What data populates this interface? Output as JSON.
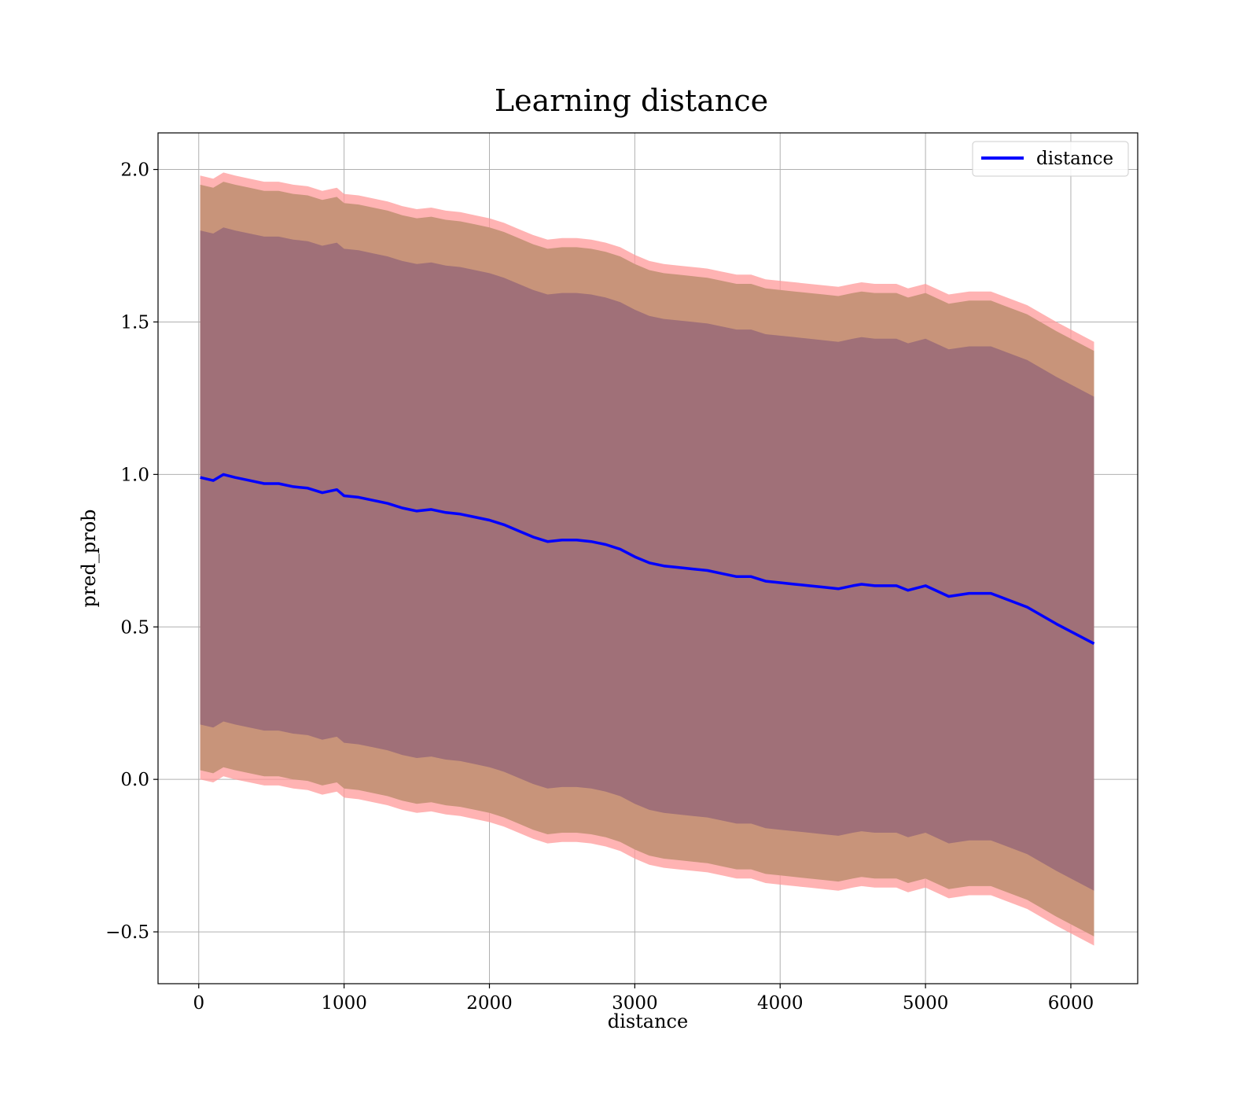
{
  "chart_data": {
    "type": "area",
    "title": "Learning distance",
    "xlabel": "distance",
    "ylabel": "pred_prob",
    "xlim": [
      -280,
      6460
    ],
    "ylim": [
      -0.67,
      2.12
    ],
    "xticks": [
      0,
      1000,
      2000,
      3000,
      4000,
      5000,
      6000
    ],
    "yticks": [
      -0.5,
      0.0,
      0.5,
      1.0,
      1.5,
      2.0
    ],
    "xtick_labels": [
      "0",
      "1000",
      "2000",
      "3000",
      "4000",
      "5000",
      "6000"
    ],
    "ytick_labels": [
      "−0.5",
      "0.0",
      "0.5",
      "1.0",
      "1.5",
      "2.0"
    ],
    "grid": true,
    "legend": {
      "position": "top-right",
      "entries": [
        "distance"
      ]
    },
    "colors": {
      "line": "#0000ff",
      "band_outer": "#ff9999",
      "band_middle": "#c8947a",
      "band_inner": "#a07078"
    },
    "series": [
      {
        "name": "distance",
        "x": [
          10,
          100,
          170,
          250,
          350,
          450,
          550,
          650,
          750,
          850,
          950,
          1000,
          1100,
          1200,
          1300,
          1400,
          1500,
          1600,
          1700,
          1800,
          1900,
          2000,
          2100,
          2200,
          2300,
          2400,
          2500,
          2600,
          2700,
          2800,
          2900,
          3000,
          3100,
          3200,
          3300,
          3400,
          3500,
          3600,
          3700,
          3800,
          3900,
          4000,
          4100,
          4200,
          4300,
          4400,
          4500,
          4560,
          4650,
          4800,
          4880,
          5000,
          5160,
          5300,
          5450,
          5700,
          5900,
          6160
        ],
        "y": [
          0.99,
          0.98,
          1.0,
          0.99,
          0.98,
          0.97,
          0.97,
          0.96,
          0.955,
          0.94,
          0.95,
          0.93,
          0.925,
          0.915,
          0.905,
          0.89,
          0.88,
          0.885,
          0.875,
          0.87,
          0.86,
          0.85,
          0.835,
          0.815,
          0.795,
          0.78,
          0.785,
          0.785,
          0.78,
          0.77,
          0.755,
          0.73,
          0.71,
          0.7,
          0.695,
          0.69,
          0.685,
          0.675,
          0.665,
          0.665,
          0.65,
          0.645,
          0.64,
          0.635,
          0.63,
          0.625,
          0.635,
          0.64,
          0.635,
          0.635,
          0.62,
          0.635,
          0.6,
          0.61,
          0.61,
          0.565,
          0.51,
          0.445
        ],
        "band_inner_half_width": 0.81,
        "band_middle_half_width": 0.96,
        "band_outer_half_width": 0.99
      }
    ]
  }
}
